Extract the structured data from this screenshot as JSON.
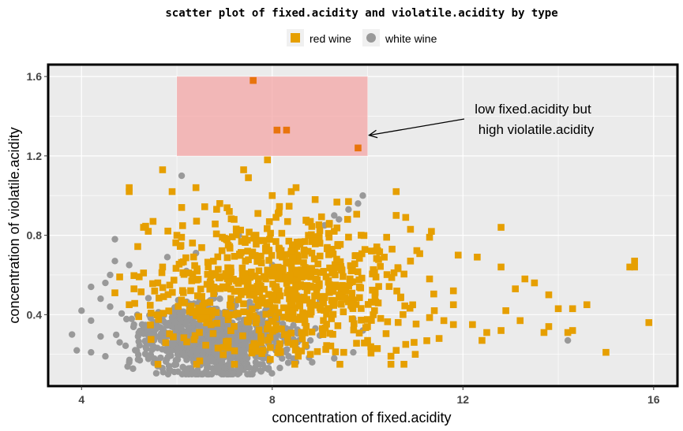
{
  "chart_data": {
    "type": "scatter",
    "title": "scatter plot of fixed.acidity and violatile.acidity by type",
    "xlabel": "concentration of fixed.acidity",
    "ylabel": "concentration of violatile.acidity",
    "xlim": [
      3.3,
      16.5
    ],
    "ylim": [
      0.04,
      1.66
    ],
    "x_ticks": [
      4,
      8,
      12,
      16
    ],
    "y_ticks": [
      0.4,
      0.8,
      1.2,
      1.6
    ],
    "grid": true,
    "legend_position": "top",
    "series": [
      {
        "name": "red wine",
        "color": "#E69F00",
        "marker": "square",
        "points": [
          [
            7.6,
            1.58
          ],
          [
            8.1,
            1.33
          ],
          [
            8.3,
            1.33
          ],
          [
            9.8,
            1.24
          ],
          [
            7.9,
            1.18
          ],
          [
            7.4,
            1.13
          ],
          [
            5.7,
            1.13
          ],
          [
            7.5,
            1.09
          ],
          [
            5.0,
            1.04
          ],
          [
            5.0,
            1.02
          ],
          [
            5.9,
            1.02
          ],
          [
            6.4,
            1.04
          ],
          [
            8.5,
            1.04
          ],
          [
            8.4,
            1.02
          ],
          [
            10.6,
            1.02
          ],
          [
            8.0,
            1.0
          ],
          [
            8.9,
            0.98
          ],
          [
            9.6,
            0.97
          ],
          [
            6.9,
            0.96
          ],
          [
            6.1,
            0.94
          ],
          [
            7.1,
            0.92
          ],
          [
            10.6,
            0.9
          ],
          [
            10.8,
            0.89
          ],
          [
            5.5,
            0.87
          ],
          [
            7.7,
            0.91
          ],
          [
            9.2,
            0.86
          ],
          [
            10.9,
            0.83
          ],
          [
            12.8,
            0.84
          ],
          [
            5.4,
            0.82
          ],
          [
            5.3,
            0.84
          ],
          [
            7.2,
            0.88
          ],
          [
            8.8,
            0.87
          ],
          [
            9.3,
            0.82
          ],
          [
            6.0,
            0.8
          ],
          [
            11.3,
            0.79
          ],
          [
            10.4,
            0.79
          ],
          [
            8.2,
            0.81
          ],
          [
            11.9,
            0.7
          ],
          [
            12.3,
            0.69
          ],
          [
            10.9,
            0.67
          ],
          [
            12.8,
            0.64
          ],
          [
            13.3,
            0.58
          ],
          [
            13.5,
            0.56
          ],
          [
            13.1,
            0.53
          ],
          [
            15.6,
            0.67
          ],
          [
            15.5,
            0.64
          ],
          [
            15.6,
            0.64
          ],
          [
            13.8,
            0.5
          ],
          [
            14.6,
            0.45
          ],
          [
            14.0,
            0.43
          ],
          [
            14.3,
            0.43
          ],
          [
            13.2,
            0.37
          ],
          [
            13.8,
            0.34
          ],
          [
            13.7,
            0.31
          ],
          [
            12.5,
            0.31
          ],
          [
            12.8,
            0.32
          ],
          [
            15.9,
            0.36
          ],
          [
            14.2,
            0.31
          ],
          [
            14.3,
            0.32
          ],
          [
            15.0,
            0.21
          ],
          [
            12.2,
            0.35
          ],
          [
            11.6,
            0.37
          ],
          [
            11.8,
            0.45
          ],
          [
            12.9,
            0.42
          ],
          [
            11.3,
            0.58
          ],
          [
            11.8,
            0.52
          ],
          [
            11.4,
            0.42
          ],
          [
            11.8,
            0.35
          ],
          [
            12.4,
            0.27
          ],
          [
            11.5,
            0.28
          ],
          [
            10.8,
            0.25
          ],
          [
            10.6,
            0.22
          ],
          [
            11.0,
            0.2
          ],
          [
            10.0,
            0.27
          ],
          [
            9.5,
            0.21
          ],
          [
            8.8,
            0.2
          ],
          [
            5.1,
            0.53
          ],
          [
            5.6,
            0.56
          ],
          [
            4.8,
            0.59
          ],
          [
            4.7,
            0.51
          ],
          [
            5.0,
            0.45
          ],
          [
            5.2,
            0.39
          ],
          [
            5.3,
            0.61
          ],
          [
            5.7,
            0.64
          ]
        ]
      },
      {
        "name": "white wine",
        "color": "#999999",
        "marker": "circle",
        "points": [
          [
            6.1,
            1.1
          ],
          [
            9.9,
            1.0
          ],
          [
            9.8,
            0.96
          ],
          [
            9.6,
            0.93
          ],
          [
            9.3,
            0.9
          ],
          [
            9.4,
            0.88
          ],
          [
            9.1,
            0.85
          ],
          [
            4.7,
            0.78
          ],
          [
            7.3,
            0.8
          ],
          [
            5.8,
            0.69
          ],
          [
            5.0,
            0.65
          ],
          [
            4.7,
            0.67
          ],
          [
            4.6,
            0.6
          ],
          [
            4.5,
            0.56
          ],
          [
            4.2,
            0.54
          ],
          [
            4.4,
            0.48
          ],
          [
            4.6,
            0.44
          ],
          [
            4.0,
            0.42
          ],
          [
            4.2,
            0.37
          ],
          [
            3.8,
            0.3
          ],
          [
            3.9,
            0.22
          ],
          [
            4.2,
            0.21
          ],
          [
            4.5,
            0.19
          ],
          [
            4.8,
            0.26
          ],
          [
            4.4,
            0.29
          ],
          [
            5.1,
            0.35
          ],
          [
            5.3,
            0.33
          ],
          [
            5.6,
            0.4
          ],
          [
            6.2,
            0.62
          ],
          [
            6.4,
            0.71
          ],
          [
            6.8,
            0.54
          ],
          [
            7.5,
            0.6
          ],
          [
            8.0,
            0.65
          ],
          [
            8.4,
            0.58
          ],
          [
            8.6,
            0.49
          ],
          [
            9.0,
            0.47
          ],
          [
            9.2,
            0.43
          ],
          [
            9.7,
            0.38
          ],
          [
            9.9,
            0.32
          ],
          [
            10.0,
            0.26
          ],
          [
            9.7,
            0.21
          ],
          [
            9.3,
            0.18
          ],
          [
            8.5,
            0.16
          ],
          [
            7.8,
            0.15
          ],
          [
            7.0,
            0.14
          ],
          [
            6.3,
            0.13
          ],
          [
            5.6,
            0.14
          ],
          [
            5.0,
            0.16
          ],
          [
            14.2,
            0.27
          ],
          [
            6.6,
            0.38
          ],
          [
            7.2,
            0.42
          ],
          [
            7.9,
            0.36
          ],
          [
            8.3,
            0.3
          ],
          [
            8.8,
            0.27
          ],
          [
            6.0,
            0.25
          ],
          [
            6.5,
            0.2
          ],
          [
            7.4,
            0.23
          ],
          [
            8.1,
            0.22
          ],
          [
            5.7,
            0.3
          ],
          [
            6.9,
            0.3
          ]
        ]
      }
    ],
    "annotation": {
      "region_label": "highlight",
      "region_x": [
        6.0,
        10.0
      ],
      "region_y": [
        1.2,
        1.6
      ],
      "region_color": "#F4A6A6",
      "arrow_to": [
        10.0,
        1.3
      ],
      "text_lines": [
        "low fixed.acidity but",
        "high violatile.acidity"
      ]
    }
  },
  "legend": {
    "red_label": "red wine",
    "white_label": "white wine"
  }
}
